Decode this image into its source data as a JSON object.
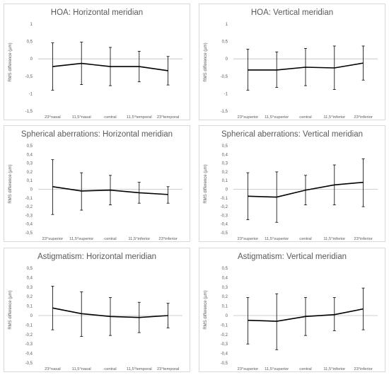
{
  "chart_data": [
    {
      "type": "line",
      "title": "HOA: Horizontal meridian",
      "ylabel": "RMS difference (µm)",
      "categories": [
        "23°nasal",
        "11,5°nasal",
        "central",
        "11,5°temporal",
        "23°temporal"
      ],
      "yticks": [
        "1",
        "0,5",
        "0",
        "-0,5",
        "-1",
        "-1,5"
      ],
      "ylim": [
        -1.5,
        1
      ],
      "values": [
        -0.22,
        -0.13,
        -0.22,
        -0.22,
        -0.34
      ],
      "err_upper": [
        0.46,
        0.48,
        0.33,
        0.22,
        0.07
      ],
      "err_lower": [
        -0.9,
        -0.74,
        -0.77,
        -0.66,
        -0.75
      ],
      "grid": false
    },
    {
      "type": "line",
      "title": "HOA: Vertical meridian",
      "ylabel": "RMS difference (µm)",
      "categories": [
        "23°superior",
        "11,5°superior",
        "central",
        "11,5°inferior",
        "23°inferior"
      ],
      "yticks": [
        "1",
        "0,5",
        "0",
        "-0,5",
        "-1",
        "-1,5"
      ],
      "ylim": [
        -1.5,
        1
      ],
      "values": [
        -0.32,
        -0.32,
        -0.24,
        -0.26,
        -0.12
      ],
      "err_upper": [
        0.28,
        0.2,
        0.3,
        0.37,
        0.37
      ],
      "err_lower": [
        -0.9,
        -0.82,
        -0.77,
        -0.88,
        -0.61
      ],
      "grid": false
    },
    {
      "type": "line",
      "title": "Spherical aberrations: Horizontal meridian",
      "ylabel": "RMS difference (µm)",
      "categories": [
        "23°superior",
        "11,5°superior",
        "central",
        "11,5°inferior",
        "23°inferior"
      ],
      "yticks": [
        "0,5",
        "0,4",
        "0,3",
        "0,2",
        "0,1",
        "0",
        "-0,1",
        "-0,2",
        "-0,3",
        "-0,4",
        "-0,5"
      ],
      "ylim": [
        -0.5,
        0.5
      ],
      "values": [
        0.03,
        -0.02,
        -0.01,
        -0.04,
        -0.06
      ],
      "err_upper": [
        0.34,
        0.19,
        0.16,
        0.08,
        0.03
      ],
      "err_lower": [
        -0.29,
        -0.24,
        -0.18,
        -0.16,
        -0.16
      ],
      "grid": false
    },
    {
      "type": "line",
      "title": "Spherical aberrations: Vertical meridian",
      "ylabel": "RMS difference (µm)",
      "categories": [
        "23°superior",
        "11,5°superior",
        "central",
        "11,5°inferior",
        "23°inferior"
      ],
      "yticks": [
        "0,5",
        "0,4",
        "0,3",
        "0,2",
        "0,1",
        "0",
        "-0,1",
        "-0,2",
        "-0,3",
        "-0,4",
        "-0,5"
      ],
      "ylim": [
        -0.5,
        0.5
      ],
      "values": [
        -0.08,
        -0.09,
        -0.01,
        0.05,
        0.08
      ],
      "err_upper": [
        0.19,
        0.2,
        0.16,
        0.28,
        0.35
      ],
      "err_lower": [
        -0.35,
        -0.38,
        -0.18,
        -0.18,
        -0.2
      ],
      "grid": false
    },
    {
      "type": "line",
      "title": "Astigmatism: Horizontal meridian",
      "ylabel": "RMS difference (µm)",
      "categories": [
        "23°nasal",
        "11,5°nasal",
        "central",
        "11,5°temporal",
        "23°temporal"
      ],
      "yticks": [
        "0,5",
        "0,4",
        "0,3",
        "0,2",
        "0,1",
        "0",
        "-0,1",
        "-0,2",
        "-0,3",
        "-0,4",
        "-0,5"
      ],
      "ylim": [
        -0.5,
        0.5
      ],
      "values": [
        0.08,
        0.02,
        -0.01,
        -0.02,
        0.0
      ],
      "err_upper": [
        0.31,
        0.25,
        0.19,
        0.14,
        0.13
      ],
      "err_lower": [
        -0.15,
        -0.22,
        -0.21,
        -0.18,
        -0.13
      ],
      "grid": false
    },
    {
      "type": "line",
      "title": "Astigmatism: Vertical meridian",
      "ylabel": "RMS difference (µm)",
      "categories": [
        "23°superior",
        "11,5°superior",
        "central",
        "11,5°inferior",
        "23°inferior"
      ],
      "yticks": [
        "0,5",
        "0,4",
        "0,3",
        "0,2",
        "0,1",
        "0",
        "-0,1",
        "-0,2",
        "-0,3",
        "-0,4",
        "-0,5"
      ],
      "ylim": [
        -0.5,
        0.5
      ],
      "values": [
        -0.05,
        -0.06,
        -0.01,
        0.01,
        0.07
      ],
      "err_upper": [
        0.19,
        0.23,
        0.19,
        0.19,
        0.29
      ],
      "err_lower": [
        -0.3,
        -0.36,
        -0.21,
        -0.16,
        -0.15
      ],
      "grid": false
    }
  ]
}
